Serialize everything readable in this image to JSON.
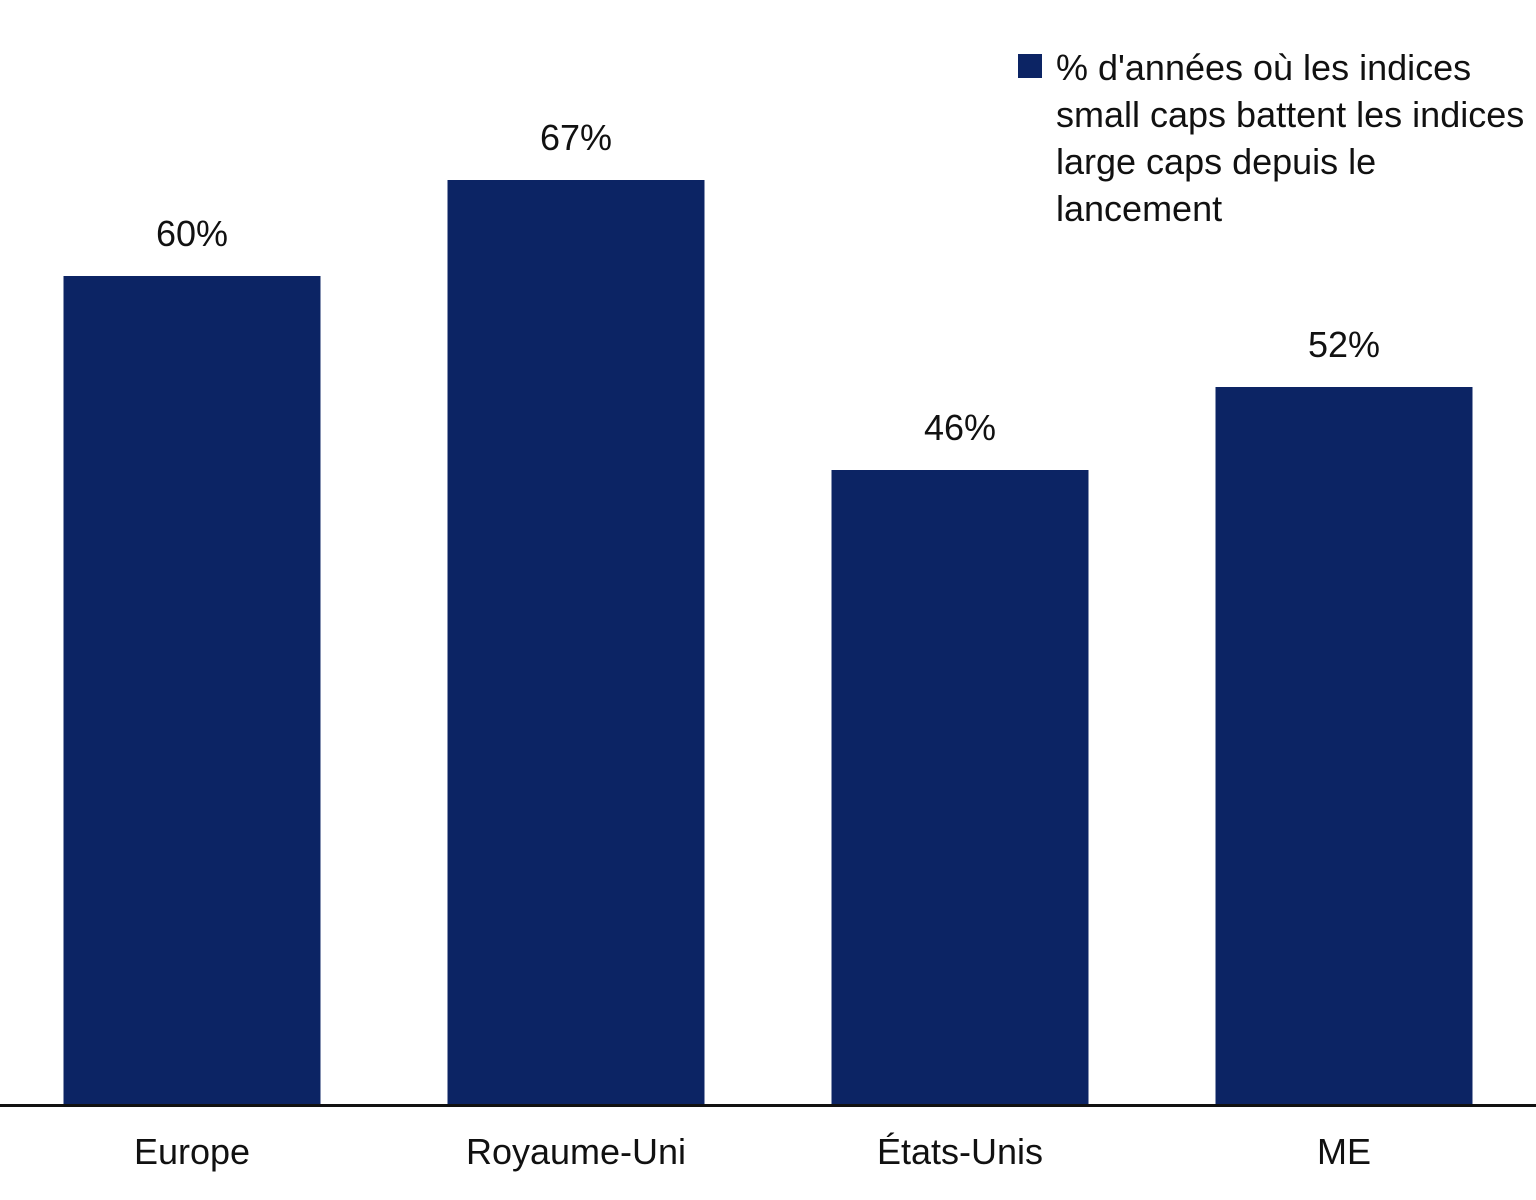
{
  "chart_data": {
    "type": "bar",
    "categories": [
      "Europe",
      "Royaume-Uni",
      "États-Unis",
      "ME"
    ],
    "values": [
      60,
      67,
      46,
      52
    ],
    "value_labels": [
      "60%",
      "67%",
      "46%",
      "52%"
    ],
    "title": "",
    "xlabel": "",
    "ylabel": "",
    "ylim": [
      0,
      80
    ],
    "grid": false,
    "legend_position": "top-right",
    "legend_entries": [
      "% d'années où les indices small caps battent les indices large caps depuis le lancement"
    ],
    "bar_color": "#0c2464"
  },
  "legend": {
    "label_lines": [
      "% d'années où les indices",
      "small caps battent les indices",
      "large caps depuis le",
      "lancement"
    ],
    "marker_color": "#0c2464"
  },
  "colors": {
    "bar": "#0c2464",
    "axis": "#111111",
    "text": "#111111",
    "background": "#ffffff"
  }
}
